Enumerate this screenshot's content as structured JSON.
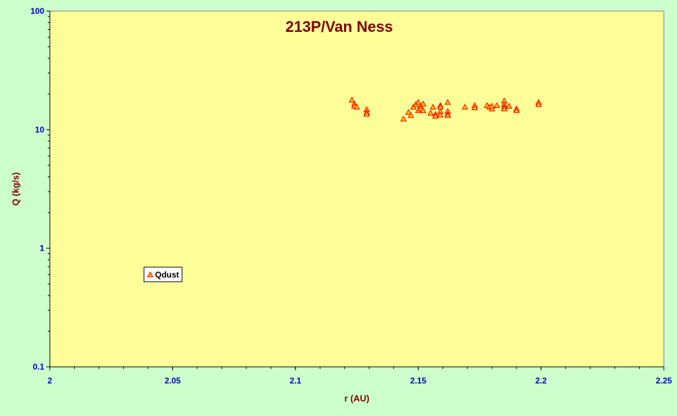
{
  "chart_data": {
    "type": "scatter",
    "title": "213P/Van Ness",
    "xlabel": "r (AU)",
    "ylabel": "Q (kg/s)",
    "xlim": [
      2,
      2.25
    ],
    "ylim": [
      0.1,
      100
    ],
    "y_scale": "log",
    "x_ticks": [
      "2",
      "2.05",
      "2.1",
      "2.15",
      "2.2",
      "2.25"
    ],
    "y_ticks": [
      "0.1",
      "1",
      "10",
      "100"
    ],
    "grid": false,
    "legend_placement": "lower-left",
    "series": [
      {
        "name": "Qdust",
        "marker": "triangle",
        "color": "#ff0000",
        "fill": "#ffcc00",
        "points": [
          [
            2.123,
            17.8
          ],
          [
            2.124,
            16.5
          ],
          [
            2.124,
            15.8
          ],
          [
            2.125,
            15.5
          ],
          [
            2.129,
            14.8
          ],
          [
            2.129,
            14.0
          ],
          [
            2.129,
            13.5
          ],
          [
            2.144,
            12.3
          ],
          [
            2.146,
            14.0
          ],
          [
            2.147,
            13.2
          ],
          [
            2.148,
            15.5
          ],
          [
            2.149,
            16.3
          ],
          [
            2.15,
            17.0
          ],
          [
            2.15,
            14.5
          ],
          [
            2.151,
            15.8
          ],
          [
            2.151,
            15.0
          ],
          [
            2.152,
            16.5
          ],
          [
            2.152,
            14.5
          ],
          [
            2.155,
            13.8
          ],
          [
            2.156,
            15.5
          ],
          [
            2.157,
            13.5
          ],
          [
            2.157,
            13.0
          ],
          [
            2.159,
            16.0
          ],
          [
            2.159,
            15.5
          ],
          [
            2.159,
            14.2
          ],
          [
            2.159,
            13.3
          ],
          [
            2.162,
            17.0
          ],
          [
            2.162,
            14.3
          ],
          [
            2.162,
            13.5
          ],
          [
            2.162,
            13.2
          ],
          [
            2.169,
            15.5
          ],
          [
            2.173,
            16.0
          ],
          [
            2.173,
            15.3
          ],
          [
            2.178,
            16.0
          ],
          [
            2.179,
            15.5
          ],
          [
            2.18,
            15.0
          ],
          [
            2.18,
            15.8
          ],
          [
            2.182,
            16.0
          ],
          [
            2.185,
            17.5
          ],
          [
            2.185,
            16.3
          ],
          [
            2.185,
            15.5
          ],
          [
            2.185,
            15.0
          ],
          [
            2.187,
            15.8
          ],
          [
            2.19,
            15.0
          ],
          [
            2.19,
            14.5
          ],
          [
            2.199,
            17.0
          ],
          [
            2.199,
            16.3
          ]
        ]
      }
    ]
  }
}
